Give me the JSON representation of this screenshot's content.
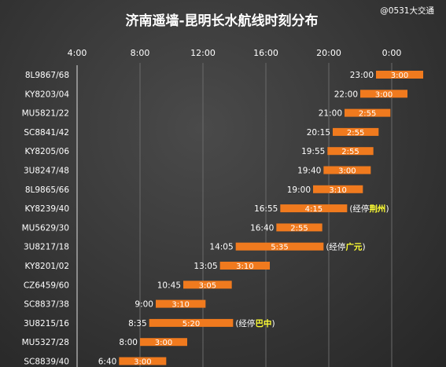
{
  "credit": "@0531大交通",
  "chart_data": {
    "type": "bar",
    "title": "济南遥墙-昆明长水航线时刻分布",
    "x_axis": {
      "ticks": [
        "4:00",
        "8:00",
        "12:00",
        "16:00",
        "20:00",
        "0:00"
      ],
      "range_hours": [
        4,
        26
      ]
    },
    "bar_color": "#f07a1e",
    "flights": [
      {
        "flight": "8L9867/68",
        "dep": "23:00",
        "start": 23.0,
        "duration": "3:00",
        "hours": 3.0
      },
      {
        "flight": "KY8203/04",
        "dep": "22:00",
        "start": 22.0,
        "duration": "3:00",
        "hours": 3.0
      },
      {
        "flight": "MU5821/22",
        "dep": "21:00",
        "start": 21.0,
        "duration": "2:55",
        "hours": 2.9167
      },
      {
        "flight": "SC8841/42",
        "dep": "20:15",
        "start": 20.25,
        "duration": "2:55",
        "hours": 2.9167
      },
      {
        "flight": "KY8205/06",
        "dep": "19:55",
        "start": 19.9167,
        "duration": "2:55",
        "hours": 2.9167
      },
      {
        "flight": "3U8247/48",
        "dep": "19:40",
        "start": 19.6667,
        "duration": "3:00",
        "hours": 3.0
      },
      {
        "flight": "8L9865/66",
        "dep": "19:00",
        "start": 19.0,
        "duration": "3:10",
        "hours": 3.1667
      },
      {
        "flight": "KY8239/40",
        "dep": "16:55",
        "start": 16.9167,
        "duration": "4:15",
        "hours": 4.25,
        "note_prefix": "(经停",
        "note_stop": "荆州",
        "note_suffix": ")"
      },
      {
        "flight": "MU5629/30",
        "dep": "16:40",
        "start": 16.6667,
        "duration": "2:55",
        "hours": 2.9167
      },
      {
        "flight": "3U8217/18",
        "dep": "14:05",
        "start": 14.0833,
        "duration": "5:35",
        "hours": 5.5833,
        "note_prefix": "(经停",
        "note_stop": "广元",
        "note_suffix": ")"
      },
      {
        "flight": "KY8201/02",
        "dep": "13:05",
        "start": 13.0833,
        "duration": "3:10",
        "hours": 3.1667
      },
      {
        "flight": "CZ6459/60",
        "dep": "10:45",
        "start": 10.75,
        "duration": "3:05",
        "hours": 3.0833
      },
      {
        "flight": "SC8837/38",
        "dep": "9:00",
        "start": 9.0,
        "duration": "3:10",
        "hours": 3.1667
      },
      {
        "flight": "3U8215/16",
        "dep": "8:35",
        "start": 8.5833,
        "duration": "5:20",
        "hours": 5.3333,
        "note_prefix": "(经停",
        "note_stop": "巴中",
        "note_suffix": ")"
      },
      {
        "flight": "MU5327/28",
        "dep": "8:00",
        "start": 8.0,
        "duration": "3:00",
        "hours": 3.0
      },
      {
        "flight": "SC8839/40",
        "dep": "6:40",
        "start": 6.6667,
        "duration": "3:00",
        "hours": 3.0
      }
    ]
  }
}
